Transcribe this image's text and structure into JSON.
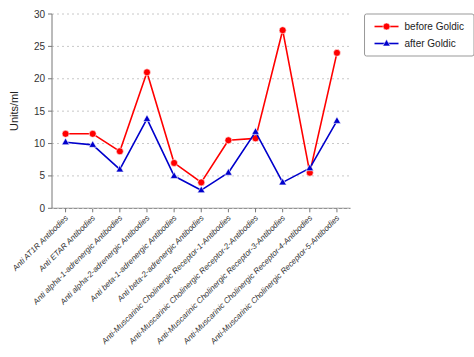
{
  "chart_data": {
    "type": "line",
    "categories": [
      "Anti AT1R Antibodies",
      "Anti ETAR Antibodies",
      "Anti alpha-1-adrenergic Antibodies",
      "Anti alpha-2-adrenergic Antibodies",
      "Anti beta-1-adrenergic Antibodies",
      "Anti beta-2-adrenergic Antibodies",
      "Anti-Muscarinic Cholinergic Receptor-1-Antibodies",
      "Anti-Muscarinic Cholinergic Receptor-2-Antibodies",
      "Anti-Muscarinic Cholinergic Receptor-3-Antibodies",
      "Anti-Muscarinic Cholinergic Receptor-4-Antibodies",
      "Anti-Muscarinic Cholinergic Receptor-5-Antibodies"
    ],
    "series": [
      {
        "name": "before Goldic",
        "color": "#ff0000",
        "marker": "circle",
        "values": [
          11.5,
          11.5,
          8.8,
          21.0,
          7.0,
          4.0,
          10.5,
          10.8,
          27.5,
          5.5,
          24.0
        ]
      },
      {
        "name": "after Goldic",
        "color": "#0000cc",
        "marker": "triangle",
        "values": [
          10.2,
          9.8,
          6.0,
          13.8,
          5.0,
          2.8,
          5.5,
          11.8,
          4.0,
          6.2,
          13.5
        ]
      }
    ],
    "ylabel": "Units/ml",
    "ylim": [
      0,
      30
    ],
    "yticks": [
      0,
      5,
      10,
      15,
      20,
      25,
      30
    ],
    "grid": true,
    "legend": "right"
  }
}
